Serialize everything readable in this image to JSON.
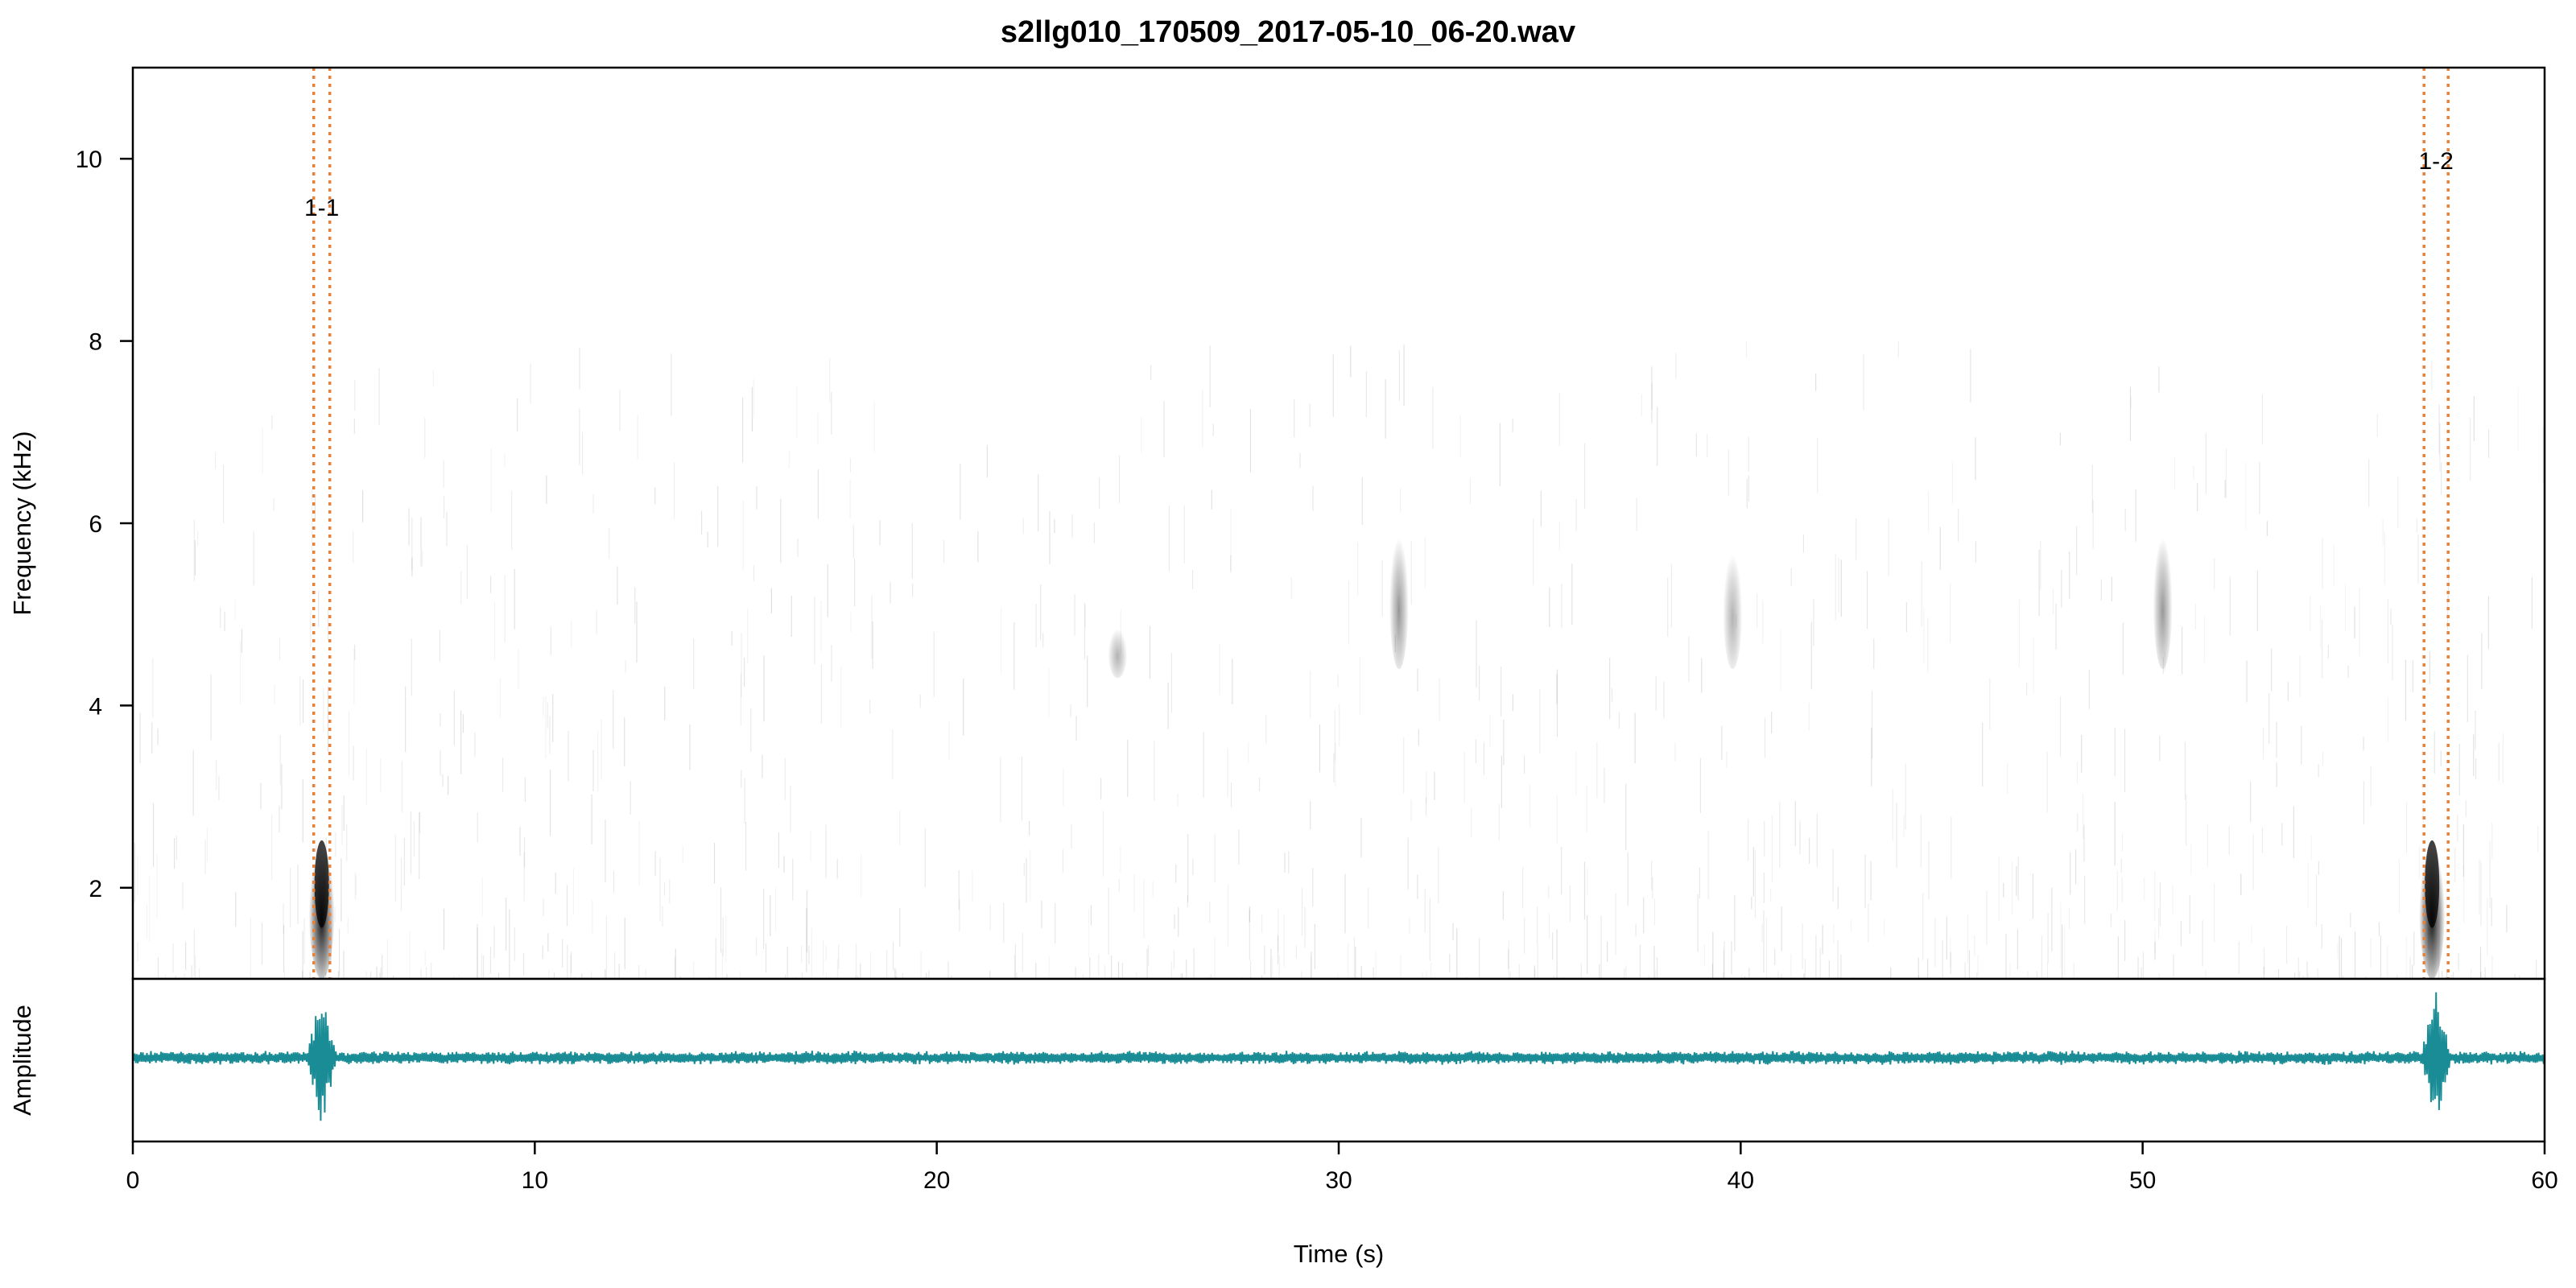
{
  "chart_data": {
    "type": "spectrogram",
    "title": "s2llg010_170509_2017-05-10_06-20.wav",
    "xlabel": "Time (s)",
    "ylabel": "Frequency (kHz)",
    "amplitude_label": "Amplitude",
    "xlim": [
      0,
      60
    ],
    "ylim": [
      1,
      11
    ],
    "x_ticks": [
      0,
      10,
      20,
      30,
      40,
      50,
      60
    ],
    "y_ticks": [
      2,
      4,
      6,
      8,
      10
    ],
    "selection_color": "#e8823a",
    "waveform_color": "#1a8c96",
    "spectrogram_color": "#000000",
    "selections": [
      {
        "label": "1-1",
        "start": 4.5,
        "end": 4.9
      },
      {
        "label": "1-2",
        "start": 57.0,
        "end": 57.6
      }
    ],
    "sound_events": [
      {
        "time": 4.7,
        "freq_low": 1.0,
        "freq_high": 2.6,
        "intensity": 0.9
      },
      {
        "time": 57.2,
        "freq_low": 1.0,
        "freq_high": 2.6,
        "intensity": 0.9
      },
      {
        "time": 24.5,
        "freq_low": 4.3,
        "freq_high": 4.9,
        "intensity": 0.3
      },
      {
        "time": 31.5,
        "freq_low": 4.4,
        "freq_high": 6.0,
        "intensity": 0.4
      },
      {
        "time": 39.8,
        "freq_low": 4.4,
        "freq_high": 5.8,
        "intensity": 0.3
      },
      {
        "time": 50.5,
        "freq_low": 4.4,
        "freq_high": 6.0,
        "intensity": 0.4
      }
    ]
  }
}
